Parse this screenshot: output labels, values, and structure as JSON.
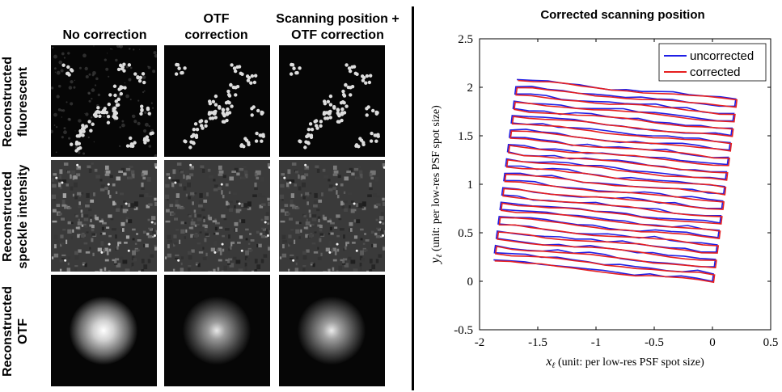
{
  "left_panel": {
    "columns": [
      "No correction",
      "OTF correction",
      "Scanning position + OTF correction"
    ],
    "column_lines": [
      [
        "No correction"
      ],
      [
        "OTF",
        "correction"
      ],
      [
        "Scanning position +",
        "OTF correction"
      ]
    ],
    "rows": [
      "Reconstructed fluorescent",
      "Reconstructed speckle intensity",
      "Reconstructed OTF"
    ],
    "row_lines": [
      [
        "Reconstructed",
        "fluorescent"
      ],
      [
        "Reconstructed",
        "speckle intensity"
      ],
      [
        "Reconstructed",
        "OTF"
      ]
    ]
  },
  "chart_data": {
    "type": "line",
    "title": "Corrected scanning position",
    "xlabel": "x_ℓ (unit: per low-res PSF spot size)",
    "xlabel_var": "x",
    "xlabel_sub": "ℓ",
    "xlabel_rest": " (unit: per low-res PSF spot size)",
    "ylabel": "y_ℓ (unit: per low-res PSF spot size)",
    "ylabel_var": "y",
    "ylabel_sub": "ℓ",
    "ylabel_rest": " (unit: per low-res PSF spot size)",
    "xlim": [
      -2,
      0.5
    ],
    "ylim": [
      -0.5,
      2.5
    ],
    "xticks": [
      -2,
      -1.5,
      -1,
      -0.5,
      0,
      0.5
    ],
    "yticks": [
      -0.5,
      0,
      0.5,
      1,
      1.5,
      2,
      2.5
    ],
    "xtick_labels": [
      "-2",
      "-1.5",
      "-1",
      "-0.5",
      "0",
      "0.5"
    ],
    "ytick_labels": [
      "-0.5",
      "0",
      "0.5",
      "1",
      "1.5",
      "2",
      "2.5"
    ],
    "legend_position": "top-right",
    "series": [
      {
        "name": "uncorrected",
        "color": "#1f1fe6",
        "scan": {
          "rows": 26,
          "top_left": [
            -1.68,
            2.08
          ],
          "top_right": [
            0.2,
            1.88
          ],
          "bottom_left": [
            -1.88,
            0.22
          ],
          "bottom_right": [
            0.0,
            0.0
          ]
        }
      },
      {
        "name": "corrected",
        "color": "#e61f1f",
        "scan": {
          "rows": 26,
          "top_left": [
            -1.67,
            2.07
          ],
          "top_right": [
            0.21,
            1.87
          ],
          "bottom_left": [
            -1.87,
            0.21
          ],
          "bottom_right": [
            0.01,
            -0.01
          ]
        }
      }
    ]
  }
}
